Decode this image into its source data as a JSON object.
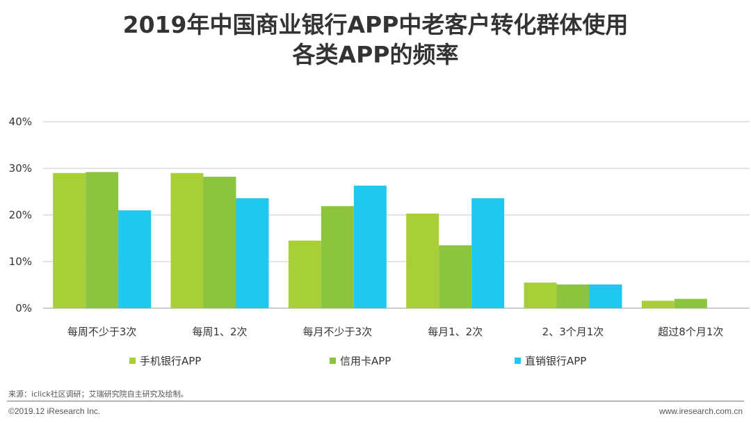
{
  "title": {
    "line1": "2019年中国商业银行APP中老客户转化群体使用",
    "line2": "各类APP的频率"
  },
  "chart_data": {
    "type": "bar",
    "title": "2019年中国商业银行APP中老客户转化群体使用各类APP的频率",
    "categories": [
      "每周不少于3次",
      "每周1、2次",
      "每月不少于3次",
      "每月1、2次",
      "2、3个月1次",
      "超过8个月1次"
    ],
    "series": [
      {
        "name": "手机银行APP",
        "color": "#a9cf38",
        "values": [
          29.0,
          29.0,
          14.5,
          20.3,
          5.5,
          1.6
        ]
      },
      {
        "name": "信用卡APP",
        "color": "#8cc440",
        "values": [
          29.2,
          28.2,
          21.9,
          13.5,
          5.1,
          2.0
        ]
      },
      {
        "name": "直销银行APP",
        "color": "#1ec8ef",
        "values": [
          21.0,
          23.6,
          26.3,
          23.6,
          5.1,
          0
        ]
      }
    ],
    "ylim": [
      0,
      40
    ],
    "yticks": [
      "0%",
      "10%",
      "20%",
      "30%",
      "40%"
    ],
    "ytick_values": [
      0,
      10,
      20,
      30,
      40
    ],
    "xlabel": "",
    "ylabel": "",
    "grid": true,
    "legend": "bottom"
  },
  "legend": {
    "items": [
      "手机银行APP",
      "信用卡APP",
      "直销银行APP"
    ]
  },
  "source_note": "来源：iclick社区调研；艾瑞研究院自主研究及绘制。",
  "footer": {
    "copyright": "©2019.12 iResearch Inc.",
    "website": "www.iresearch.com.cn"
  }
}
